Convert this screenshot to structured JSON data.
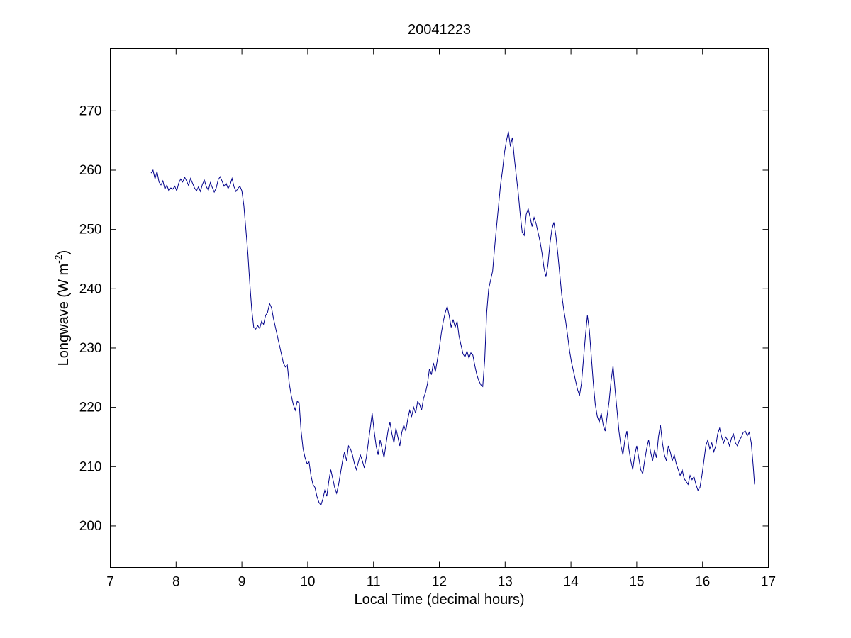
{
  "figure": {
    "background": "#ffffff"
  },
  "chart_data": {
    "type": "line",
    "title": "20041223",
    "xlabel": "Local Time (decimal hours)",
    "ylabel": "Longwave (W m-2)",
    "ylabel_parts": {
      "base": "Longwave (W m",
      "sup": "-2",
      "end": ")"
    },
    "line_color": "#00008B",
    "axis_color": "#000000",
    "grid": "off",
    "legend": "none",
    "xlim": [
      7,
      17
    ],
    "ylim": [
      193,
      280.5
    ],
    "xticks": [
      7,
      8,
      9,
      10,
      11,
      12,
      13,
      14,
      15,
      16,
      17
    ],
    "yticks": [
      200,
      210,
      220,
      230,
      240,
      250,
      260,
      270
    ],
    "points": [
      [
        7.62,
        259.5
      ],
      [
        7.65,
        260
      ],
      [
        7.68,
        258.5
      ],
      [
        7.71,
        259.8
      ],
      [
        7.74,
        258
      ],
      [
        7.77,
        257.5
      ],
      [
        7.8,
        258.2
      ],
      [
        7.83,
        256.8
      ],
      [
        7.86,
        257.5
      ],
      [
        7.89,
        256.5
      ],
      [
        7.92,
        257
      ],
      [
        7.95,
        256.8
      ],
      [
        7.98,
        257.3
      ],
      [
        8.01,
        256.5
      ],
      [
        8.04,
        257.8
      ],
      [
        8.07,
        258.5
      ],
      [
        8.1,
        258
      ],
      [
        8.13,
        258.8
      ],
      [
        8.16,
        258.2
      ],
      [
        8.19,
        257.4
      ],
      [
        8.22,
        258.6
      ],
      [
        8.25,
        257.8
      ],
      [
        8.28,
        257
      ],
      [
        8.31,
        256.5
      ],
      [
        8.34,
        257.2
      ],
      [
        8.37,
        256.4
      ],
      [
        8.4,
        257.6
      ],
      [
        8.43,
        258.3
      ],
      [
        8.46,
        257.2
      ],
      [
        8.49,
        256.6
      ],
      [
        8.52,
        257.9
      ],
      [
        8.55,
        257.1
      ],
      [
        8.58,
        256.3
      ],
      [
        8.61,
        257
      ],
      [
        8.64,
        258.4
      ],
      [
        8.67,
        258.9
      ],
      [
        8.7,
        258.1
      ],
      [
        8.73,
        257.3
      ],
      [
        8.76,
        257.8
      ],
      [
        8.79,
        256.9
      ],
      [
        8.82,
        257.5
      ],
      [
        8.85,
        258.6
      ],
      [
        8.88,
        257.2
      ],
      [
        8.91,
        256.4
      ],
      [
        8.94,
        256.9
      ],
      [
        8.97,
        257.3
      ],
      [
        9,
        256.5
      ],
      [
        9.03,
        254
      ],
      [
        9.06,
        250
      ],
      [
        9.09,
        246
      ],
      [
        9.12,
        241
      ],
      [
        9.15,
        236.5
      ],
      [
        9.18,
        233.5
      ],
      [
        9.21,
        233.2
      ],
      [
        9.24,
        233.8
      ],
      [
        9.27,
        233.3
      ],
      [
        9.3,
        234.5
      ],
      [
        9.33,
        234
      ],
      [
        9.36,
        235.5
      ],
      [
        9.39,
        236
      ],
      [
        9.42,
        237.5
      ],
      [
        9.45,
        236.8
      ],
      [
        9.48,
        235
      ],
      [
        9.51,
        233.5
      ],
      [
        9.54,
        232
      ],
      [
        9.57,
        230.5
      ],
      [
        9.6,
        229
      ],
      [
        9.63,
        227.5
      ],
      [
        9.66,
        226.8
      ],
      [
        9.69,
        227.2
      ],
      [
        9.72,
        224
      ],
      [
        9.75,
        222
      ],
      [
        9.78,
        220.5
      ],
      [
        9.81,
        219.5
      ],
      [
        9.84,
        221
      ],
      [
        9.87,
        220.8
      ],
      [
        9.9,
        216
      ],
      [
        9.93,
        213
      ],
      [
        9.96,
        211.5
      ],
      [
        9.99,
        210.5
      ],
      [
        10.02,
        210.8
      ],
      [
        10.05,
        208.5
      ],
      [
        10.08,
        207
      ],
      [
        10.11,
        206.5
      ],
      [
        10.14,
        205
      ],
      [
        10.17,
        204
      ],
      [
        10.2,
        203.5
      ],
      [
        10.23,
        204.5
      ],
      [
        10.26,
        206
      ],
      [
        10.29,
        205
      ],
      [
        10.32,
        207.5
      ],
      [
        10.35,
        209.5
      ],
      [
        10.38,
        208
      ],
      [
        10.41,
        206.5
      ],
      [
        10.44,
        205.5
      ],
      [
        10.47,
        207
      ],
      [
        10.5,
        209
      ],
      [
        10.53,
        211
      ],
      [
        10.56,
        212.5
      ],
      [
        10.59,
        211
      ],
      [
        10.62,
        213.5
      ],
      [
        10.65,
        213
      ],
      [
        10.68,
        212
      ],
      [
        10.71,
        210.5
      ],
      [
        10.74,
        209.5
      ],
      [
        10.77,
        210.8
      ],
      [
        10.8,
        212
      ],
      [
        10.83,
        211
      ],
      [
        10.86,
        209.8
      ],
      [
        10.89,
        211.5
      ],
      [
        10.92,
        214
      ],
      [
        10.95,
        216.5
      ],
      [
        10.98,
        219
      ],
      [
        11.01,
        216
      ],
      [
        11.04,
        213.5
      ],
      [
        11.07,
        212
      ],
      [
        11.1,
        214.5
      ],
      [
        11.13,
        213
      ],
      [
        11.16,
        211.5
      ],
      [
        11.19,
        213.8
      ],
      [
        11.22,
        216
      ],
      [
        11.25,
        217.5
      ],
      [
        11.28,
        215.5
      ],
      [
        11.31,
        214
      ],
      [
        11.34,
        216.5
      ],
      [
        11.37,
        215
      ],
      [
        11.4,
        213.5
      ],
      [
        11.43,
        215.8
      ],
      [
        11.46,
        217
      ],
      [
        11.49,
        216
      ],
      [
        11.52,
        218
      ],
      [
        11.55,
        219.5
      ],
      [
        11.58,
        218.5
      ],
      [
        11.61,
        220
      ],
      [
        11.64,
        219
      ],
      [
        11.67,
        221
      ],
      [
        11.7,
        220.5
      ],
      [
        11.73,
        219.5
      ],
      [
        11.76,
        221.5
      ],
      [
        11.79,
        222.5
      ],
      [
        11.82,
        224
      ],
      [
        11.85,
        226.5
      ],
      [
        11.88,
        225.5
      ],
      [
        11.91,
        227.5
      ],
      [
        11.94,
        226
      ],
      [
        11.97,
        228
      ],
      [
        12,
        230
      ],
      [
        12.03,
        232.5
      ],
      [
        12.06,
        234.5
      ],
      [
        12.09,
        236
      ],
      [
        12.12,
        237
      ],
      [
        12.15,
        235.5
      ],
      [
        12.18,
        233.5
      ],
      [
        12.21,
        234.8
      ],
      [
        12.24,
        233.5
      ],
      [
        12.27,
        234.5
      ],
      [
        12.3,
        232
      ],
      [
        12.33,
        230.5
      ],
      [
        12.36,
        229
      ],
      [
        12.39,
        228.5
      ],
      [
        12.42,
        229.5
      ],
      [
        12.45,
        228.3
      ],
      [
        12.48,
        229.2
      ],
      [
        12.51,
        228.8
      ],
      [
        12.54,
        227
      ],
      [
        12.57,
        225.5
      ],
      [
        12.6,
        224.5
      ],
      [
        12.63,
        223.8
      ],
      [
        12.66,
        223.5
      ],
      [
        12.69,
        228
      ],
      [
        12.72,
        236
      ],
      [
        12.75,
        240
      ],
      [
        12.78,
        241.5
      ],
      [
        12.81,
        243
      ],
      [
        12.84,
        247
      ],
      [
        12.87,
        250.5
      ],
      [
        12.9,
        254
      ],
      [
        12.93,
        257.5
      ],
      [
        12.96,
        260
      ],
      [
        12.99,
        263
      ],
      [
        13.02,
        265
      ],
      [
        13.05,
        266.5
      ],
      [
        13.08,
        264
      ],
      [
        13.11,
        265.5
      ],
      [
        13.14,
        262
      ],
      [
        13.17,
        259
      ],
      [
        13.2,
        256
      ],
      [
        13.23,
        252.5
      ],
      [
        13.26,
        249.5
      ],
      [
        13.29,
        249
      ],
      [
        13.32,
        252.5
      ],
      [
        13.35,
        253.5
      ],
      [
        13.38,
        252
      ],
      [
        13.41,
        250.5
      ],
      [
        13.44,
        252
      ],
      [
        13.47,
        251
      ],
      [
        13.5,
        249.5
      ],
      [
        13.53,
        248
      ],
      [
        13.56,
        246
      ],
      [
        13.59,
        243.5
      ],
      [
        13.62,
        242
      ],
      [
        13.65,
        244
      ],
      [
        13.68,
        247.5
      ],
      [
        13.71,
        250
      ],
      [
        13.74,
        251.2
      ],
      [
        13.77,
        249
      ],
      [
        13.8,
        246
      ],
      [
        13.83,
        242.5
      ],
      [
        13.86,
        239
      ],
      [
        13.89,
        236.5
      ],
      [
        13.92,
        234.5
      ],
      [
        13.95,
        232
      ],
      [
        13.98,
        229.5
      ],
      [
        14.01,
        227.5
      ],
      [
        14.04,
        226
      ],
      [
        14.07,
        224.5
      ],
      [
        14.1,
        223
      ],
      [
        14.13,
        222
      ],
      [
        14.16,
        224
      ],
      [
        14.19,
        228
      ],
      [
        14.22,
        232
      ],
      [
        14.25,
        235.5
      ],
      [
        14.28,
        233
      ],
      [
        14.31,
        228.5
      ],
      [
        14.34,
        224
      ],
      [
        14.37,
        220.5
      ],
      [
        14.4,
        218.5
      ],
      [
        14.43,
        217.5
      ],
      [
        14.46,
        219
      ],
      [
        14.49,
        217
      ],
      [
        14.52,
        216
      ],
      [
        14.55,
        218.5
      ],
      [
        14.58,
        221
      ],
      [
        14.61,
        224.5
      ],
      [
        14.64,
        227
      ],
      [
        14.67,
        223
      ],
      [
        14.7,
        219.5
      ],
      [
        14.73,
        216
      ],
      [
        14.76,
        213.5
      ],
      [
        14.79,
        212
      ],
      [
        14.82,
        214.5
      ],
      [
        14.85,
        216
      ],
      [
        14.88,
        213
      ],
      [
        14.91,
        211
      ],
      [
        14.94,
        209.5
      ],
      [
        14.97,
        212
      ],
      [
        15,
        213.5
      ],
      [
        15.03,
        211.5
      ],
      [
        15.06,
        209.5
      ],
      [
        15.09,
        208.8
      ],
      [
        15.12,
        211
      ],
      [
        15.15,
        213
      ],
      [
        15.18,
        214.5
      ],
      [
        15.21,
        212.5
      ],
      [
        15.24,
        211
      ],
      [
        15.27,
        212.8
      ],
      [
        15.3,
        211.5
      ],
      [
        15.33,
        215
      ],
      [
        15.36,
        217
      ],
      [
        15.39,
        214
      ],
      [
        15.42,
        212
      ],
      [
        15.45,
        211
      ],
      [
        15.48,
        213.5
      ],
      [
        15.51,
        212.5
      ],
      [
        15.54,
        211
      ],
      [
        15.57,
        212
      ],
      [
        15.6,
        210.5
      ],
      [
        15.63,
        209.5
      ],
      [
        15.66,
        208.5
      ],
      [
        15.69,
        209.5
      ],
      [
        15.72,
        208
      ],
      [
        15.75,
        207.5
      ],
      [
        15.78,
        207
      ],
      [
        15.81,
        208.5
      ],
      [
        15.84,
        207.8
      ],
      [
        15.87,
        208.3
      ],
      [
        15.9,
        207
      ],
      [
        15.93,
        206
      ],
      [
        15.96,
        206.5
      ],
      [
        15.99,
        208.5
      ],
      [
        16.02,
        211
      ],
      [
        16.05,
        213.5
      ],
      [
        16.08,
        214.5
      ],
      [
        16.11,
        213
      ],
      [
        16.14,
        214
      ],
      [
        16.17,
        212.5
      ],
      [
        16.2,
        213.5
      ],
      [
        16.23,
        215.5
      ],
      [
        16.26,
        216.5
      ],
      [
        16.29,
        215
      ],
      [
        16.32,
        214
      ],
      [
        16.35,
        215
      ],
      [
        16.38,
        214.5
      ],
      [
        16.41,
        213.5
      ],
      [
        16.44,
        214.8
      ],
      [
        16.47,
        215.5
      ],
      [
        16.5,
        214
      ],
      [
        16.53,
        213.5
      ],
      [
        16.56,
        214.5
      ],
      [
        16.59,
        215
      ],
      [
        16.62,
        215.8
      ],
      [
        16.65,
        216
      ],
      [
        16.68,
        215.2
      ],
      [
        16.71,
        215.8
      ],
      [
        16.74,
        214
      ],
      [
        16.77,
        210
      ],
      [
        16.79,
        207
      ]
    ]
  }
}
